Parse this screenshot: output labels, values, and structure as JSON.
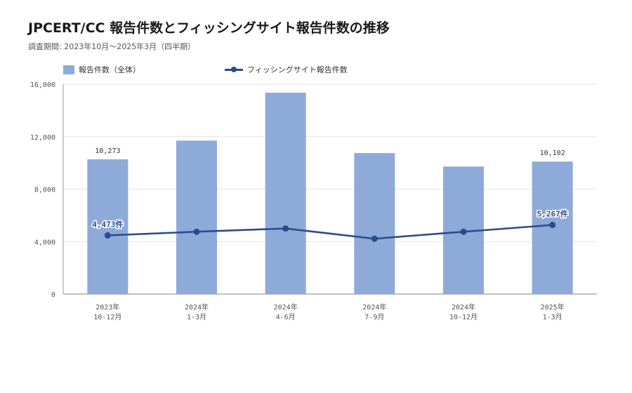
{
  "title": "JPCERT/CC 報告件数とフィッシングサイト報告件数の推移",
  "subtitle": "調査期間: 2023年10月～2025年3月（四半期）",
  "colors": {
    "bar": "#8eaad8",
    "line": "#2b4c8c",
    "grid": "#e6e6e6",
    "axis": "#999999",
    "tick_text": "#555555",
    "label_text": "#333333"
  },
  "chart_data": {
    "type": "bar",
    "categories": [
      [
        "2023年",
        "10-12月"
      ],
      [
        "2024年",
        "1-3月"
      ],
      [
        "2024年",
        "4-6月"
      ],
      [
        "2024年",
        "7-9月"
      ],
      [
        "2024年",
        "10-12月"
      ],
      [
        "2025年",
        "1-3月"
      ]
    ],
    "series": [
      {
        "name": "報告件数（全体）",
        "type": "bar",
        "values": [
          10273,
          11700,
          15350,
          10750,
          9720,
          10102
        ],
        "data_labels": [
          "10,273",
          null,
          null,
          null,
          null,
          "10,102"
        ]
      },
      {
        "name": "フィッシングサイト報告件数",
        "type": "line",
        "values": [
          4473,
          4750,
          5000,
          4220,
          4750,
          5267
        ],
        "data_labels": [
          "4,473件",
          null,
          null,
          null,
          null,
          "5,267件"
        ]
      }
    ],
    "y_ticks": [
      "0",
      "4,000",
      "8,000",
      "12,000",
      "16,000"
    ],
    "ylim": [
      0,
      16000
    ],
    "grid": true,
    "legend_position": "top-left"
  }
}
